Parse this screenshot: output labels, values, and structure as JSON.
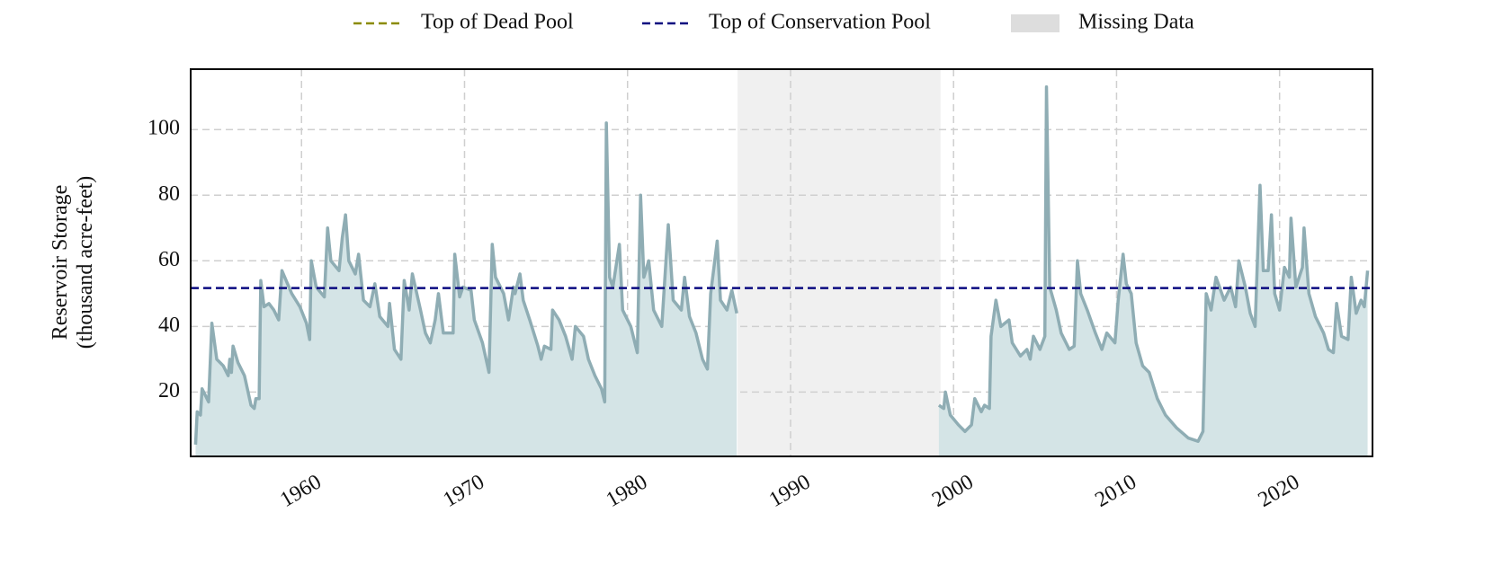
{
  "chart_data": {
    "type": "area",
    "y_label": "Reservoir Storage\n(thousand acre-feet)",
    "x": [
      1953.5,
      1953.6,
      1953.8,
      1953.9,
      1954.3,
      1954.5,
      1954.8,
      1955.2,
      1955.5,
      1955.6,
      1955.7,
      1955.8,
      1956.1,
      1956.5,
      1956.9,
      1957.1,
      1957.2,
      1957.4,
      1957.5,
      1957.7,
      1958.0,
      1958.3,
      1958.6,
      1958.8,
      1959.4,
      1959.9,
      1960.3,
      1960.5,
      1960.6,
      1960.9,
      1961.4,
      1961.6,
      1961.8,
      1962.3,
      1962.5,
      1962.7,
      1962.9,
      1963.3,
      1963.5,
      1963.8,
      1964.2,
      1964.5,
      1964.8,
      1965.3,
      1965.4,
      1965.7,
      1966.1,
      1966.3,
      1966.6,
      1966.8,
      1967.3,
      1967.6,
      1967.9,
      1968.2,
      1968.4,
      1968.7,
      1969.3,
      1969.4,
      1969.7,
      1969.9,
      1970.4,
      1970.6,
      1971.1,
      1971.5,
      1971.7,
      1971.9,
      1972.4,
      1972.7,
      1973.0,
      1973.1,
      1973.4,
      1973.6,
      1974.0,
      1974.5,
      1974.7,
      1974.9,
      1975.3,
      1975.4,
      1975.8,
      1976.2,
      1976.6,
      1976.8,
      1977.3,
      1977.6,
      1978.0,
      1978.4,
      1978.6,
      1978.7,
      1978.9,
      1979.1,
      1979.5,
      1979.7,
      1980.2,
      1980.6,
      1980.8,
      1981.0,
      1981.3,
      1981.6,
      1982.1,
      1982.5,
      1982.8,
      1983.3,
      1983.5,
      1983.8,
      1984.2,
      1984.6,
      1984.9,
      1985.1,
      1985.5,
      1985.7,
      1986.1,
      1986.4,
      1986.7,
      1993.0,
      1999.1,
      1999.4,
      1999.5,
      1999.8,
      2000.3,
      2000.7,
      2001.1,
      2001.3,
      2001.7,
      2001.9,
      2002.2,
      2002.3,
      2002.6,
      2002.9,
      2003.4,
      2003.6,
      2004.1,
      2004.5,
      2004.7,
      2004.9,
      2005.3,
      2005.6,
      2005.7,
      2005.9,
      2006.3,
      2006.6,
      2007.1,
      2007.4,
      2007.6,
      2007.8,
      2008.2,
      2008.7,
      2009.1,
      2009.4,
      2009.9,
      2010.1,
      2010.4,
      2010.6,
      2010.9,
      2011.2,
      2011.6,
      2012.0,
      2012.5,
      2013.0,
      2013.7,
      2014.4,
      2015.0,
      2015.3,
      2015.5,
      2015.8,
      2016.1,
      2016.6,
      2017.0,
      2017.3,
      2017.5,
      2017.9,
      2018.2,
      2018.5,
      2018.8,
      2019.0,
      2019.3,
      2019.5,
      2019.7,
      2020.0,
      2020.3,
      2020.6,
      2020.7,
      2021.0,
      2021.4,
      2021.5,
      2021.8,
      2022.2,
      2022.7,
      2023.0,
      2023.3,
      2023.5,
      2023.8,
      2024.2,
      2024.4,
      2024.7,
      2025.0,
      2025.2,
      2025.4
    ],
    "series": [
      {
        "name": "Reservoir Storage",
        "color": "#8fadb4",
        "fill": "#d4e4e6",
        "values": [
          4,
          14,
          13,
          21,
          17,
          41,
          30,
          28,
          25,
          30,
          26,
          34,
          29,
          25,
          16,
          15,
          18,
          18,
          54,
          46,
          47,
          45,
          42,
          57,
          50,
          46,
          41,
          36,
          60,
          52,
          49,
          70,
          60,
          57,
          67,
          74,
          60,
          56,
          62,
          48,
          46,
          53,
          43,
          40,
          47,
          33,
          30,
          54,
          45,
          56,
          45,
          38,
          35,
          42,
          50,
          38,
          38,
          62,
          49,
          52,
          51,
          42,
          35,
          26,
          65,
          55,
          50,
          42,
          52,
          50,
          56,
          48,
          42,
          34,
          30,
          34,
          33,
          45,
          42,
          37,
          30,
          40,
          37,
          30,
          25,
          21,
          17,
          102,
          55,
          52,
          65,
          45,
          40,
          32,
          80,
          55,
          60,
          45,
          40,
          71,
          48,
          45,
          55,
          43,
          38,
          30,
          27,
          50,
          66,
          48,
          45,
          51,
          44,
          null,
          16,
          15,
          20,
          13,
          10,
          8,
          10,
          18,
          14,
          16,
          15,
          37,
          48,
          40,
          42,
          35,
          31,
          33,
          30,
          37,
          33,
          37,
          113,
          52,
          45,
          38,
          33,
          34,
          60,
          50,
          45,
          38,
          33,
          38,
          35,
          48,
          62,
          53,
          50,
          35,
          28,
          26,
          18,
          13,
          9,
          6,
          5,
          8,
          50,
          45,
          55,
          48,
          52,
          46,
          60,
          52,
          44,
          40,
          83,
          57,
          57,
          74,
          50,
          45,
          58,
          55,
          73,
          52,
          58,
          70,
          50,
          43,
          38,
          33,
          32,
          47,
          37,
          36,
          55,
          44,
          48,
          46,
          57
        ]
      }
    ],
    "dead_pool": {
      "name": "Top of Dead Pool",
      "color": "#8b8b00"
    },
    "conservation_pool": {
      "name": "Top of Conservation Pool",
      "value": 51.7,
      "color": "#0a0a80"
    },
    "missing_data": {
      "name": "Missing Data",
      "xlim": [
        1986.75,
        1999.2
      ],
      "color": "#f0f0f0",
      "legend_color": "#dddddd"
    },
    "xlim": [
      1953.2,
      2025.7
    ],
    "xticks": [
      1960,
      1970,
      1980,
      1990,
      2000,
      2010,
      2020
    ],
    "ylim": [
      0.4,
      118.4
    ],
    "yticks": [
      20,
      40,
      60,
      80,
      100
    ],
    "grid": true
  }
}
